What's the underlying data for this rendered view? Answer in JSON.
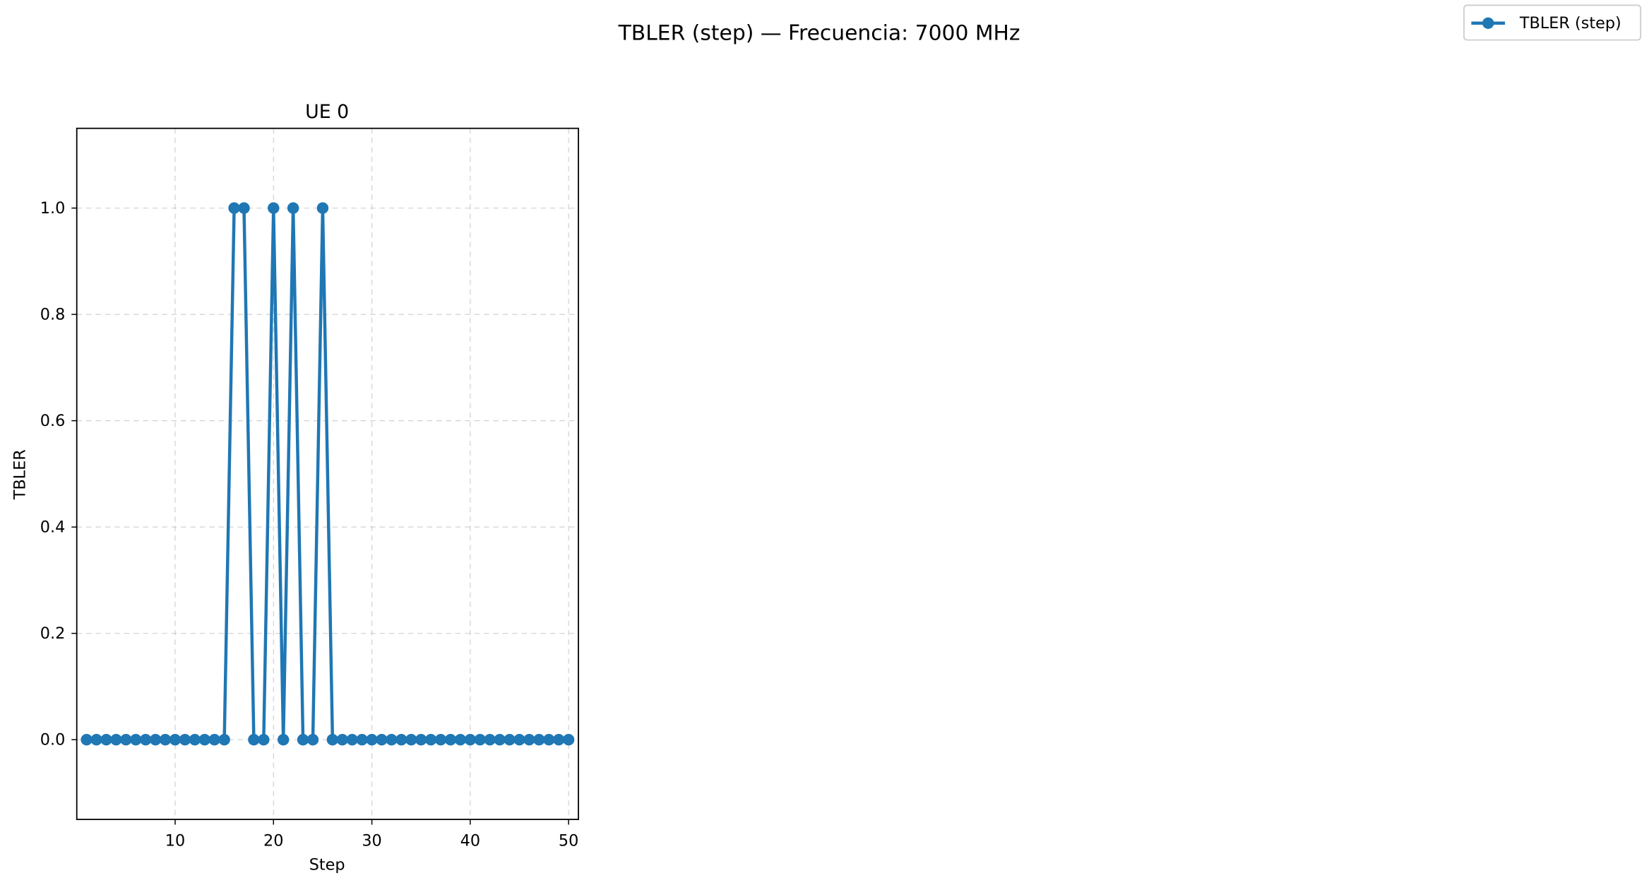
{
  "figure": {
    "suptitle": "TBLER (step) — Frecuencia: 7000 MHz"
  },
  "legend": {
    "label": "TBLER (step)",
    "placement": "top-right"
  },
  "colors": {
    "series": "#1f77b4",
    "grid": "#b0b0b0",
    "axes": "#000000",
    "background": "#ffffff"
  },
  "chart_data": {
    "type": "line",
    "title": "UE 0",
    "xlabel": "Step",
    "ylabel": "TBLER",
    "xlim": [
      0,
      51
    ],
    "ylim": [
      -0.15,
      1.15
    ],
    "xticks": [
      10,
      20,
      30,
      40,
      50
    ],
    "xtick_labels": [
      "10",
      "20",
      "30",
      "40",
      "50"
    ],
    "yticks": [
      0.0,
      0.2,
      0.4,
      0.6,
      0.8,
      1.0
    ],
    "ytick_labels": [
      "0.0",
      "0.2",
      "0.4",
      "0.6",
      "0.8",
      "1.0"
    ],
    "grid": true,
    "marker": "circle",
    "x": [
      1,
      2,
      3,
      4,
      5,
      6,
      7,
      8,
      9,
      10,
      11,
      12,
      13,
      14,
      15,
      16,
      17,
      18,
      19,
      20,
      21,
      22,
      23,
      24,
      25,
      26,
      27,
      28,
      29,
      30,
      31,
      32,
      33,
      34,
      35,
      36,
      37,
      38,
      39,
      40,
      41,
      42,
      43,
      44,
      45,
      46,
      47,
      48,
      49,
      50
    ],
    "series": [
      {
        "name": "TBLER (step)",
        "values": [
          0,
          0,
          0,
          0,
          0,
          0,
          0,
          0,
          0,
          0,
          0,
          0,
          0,
          0,
          0,
          1,
          1,
          0,
          0,
          1,
          0,
          1,
          0,
          0,
          1,
          0,
          0,
          0,
          0,
          0,
          0,
          0,
          0,
          0,
          0,
          0,
          0,
          0,
          0,
          0,
          0,
          0,
          0,
          0,
          0,
          0,
          0,
          0,
          0,
          0
        ]
      }
    ]
  }
}
